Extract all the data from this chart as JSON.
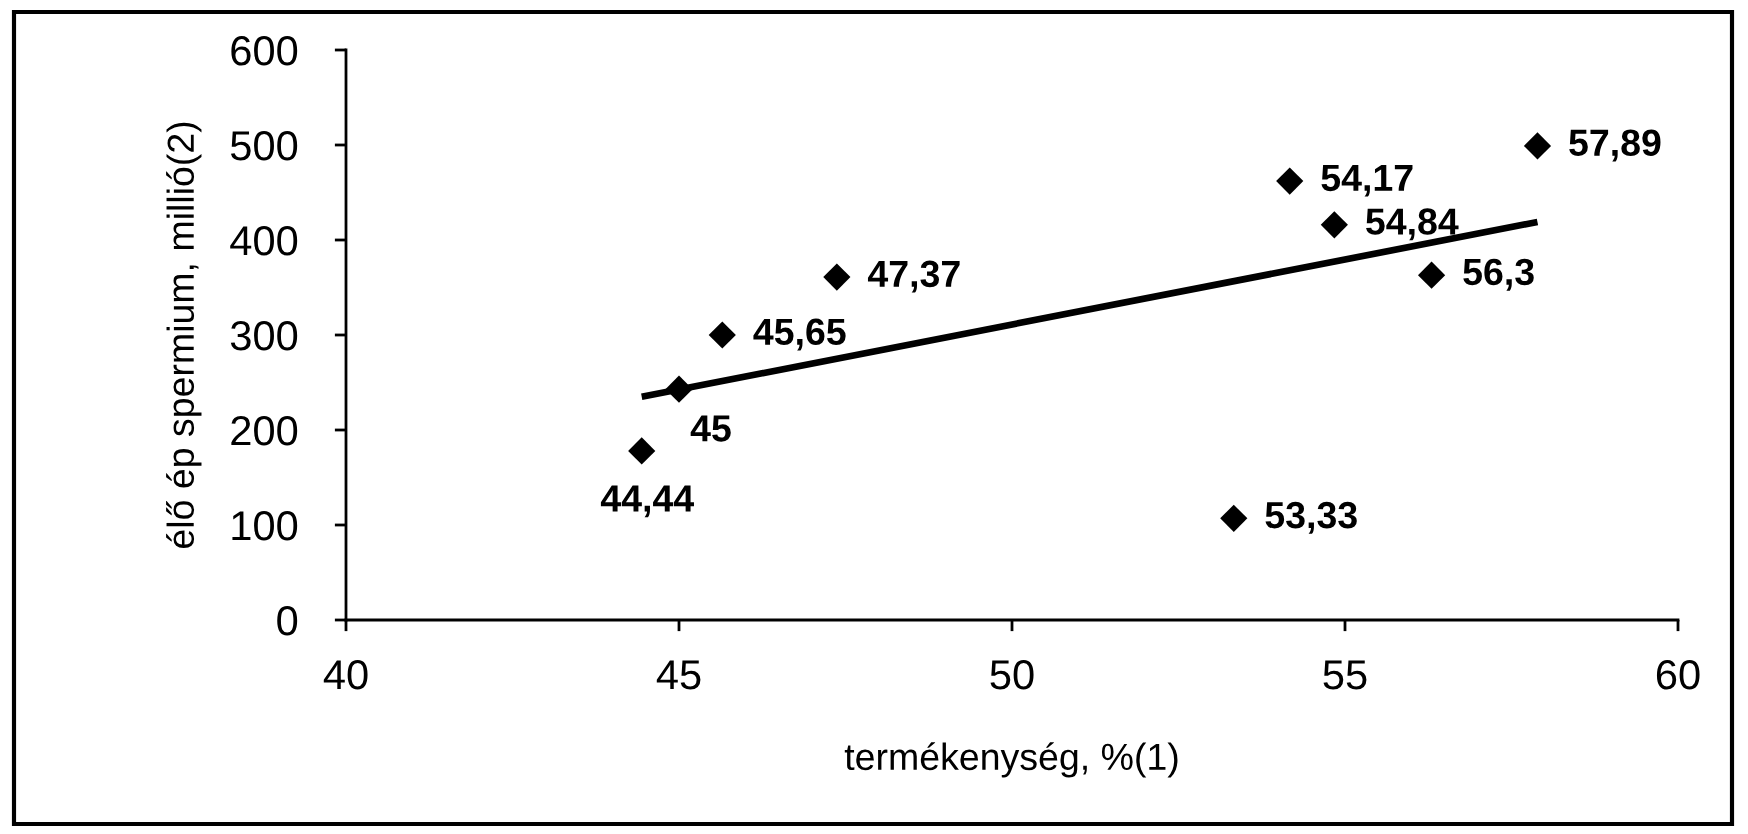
{
  "chart_data": {
    "type": "scatter",
    "xlabel": "termékenység, %(1)",
    "ylabel": "élő ép spermium, millió(2)",
    "xlim": [
      40,
      60
    ],
    "xticks": [
      40,
      45,
      50,
      55,
      60
    ],
    "ylim": [
      0,
      600
    ],
    "yticks": [
      0,
      100,
      200,
      300,
      400,
      500,
      600
    ],
    "series": [
      {
        "color": "#000000",
        "marker": "diamond",
        "x": [
          44.44,
          45,
          45.65,
          47.37,
          53.33,
          54.17,
          54.84,
          56.3,
          57.89
        ],
        "values": [
          178,
          243,
          300,
          361,
          107,
          462,
          416,
          363,
          499
        ]
      },
      {
        "type": "line",
        "color": "#000000",
        "marker": "none",
        "line_style": "solid",
        "x": [
          44.44,
          57.89
        ],
        "values": [
          235,
          419
        ]
      }
    ],
    "annotations": [
      {
        "text": "44,44",
        "x": 44.44,
        "y": 178
      },
      {
        "text": "45",
        "x": 45,
        "y": 243
      },
      {
        "text": "45,65",
        "x": 45.65,
        "y": 300
      },
      {
        "text": "47,37",
        "x": 47.37,
        "y": 361
      },
      {
        "text": "53,33",
        "x": 53.33,
        "y": 107
      },
      {
        "text": "54,17",
        "x": 54.17,
        "y": 462
      },
      {
        "text": "54,84",
        "x": 54.84,
        "y": 416
      },
      {
        "text": "56,3",
        "x": 56.3,
        "y": 363
      },
      {
        "text": "57,89",
        "x": 57.89,
        "y": 499
      }
    ]
  }
}
